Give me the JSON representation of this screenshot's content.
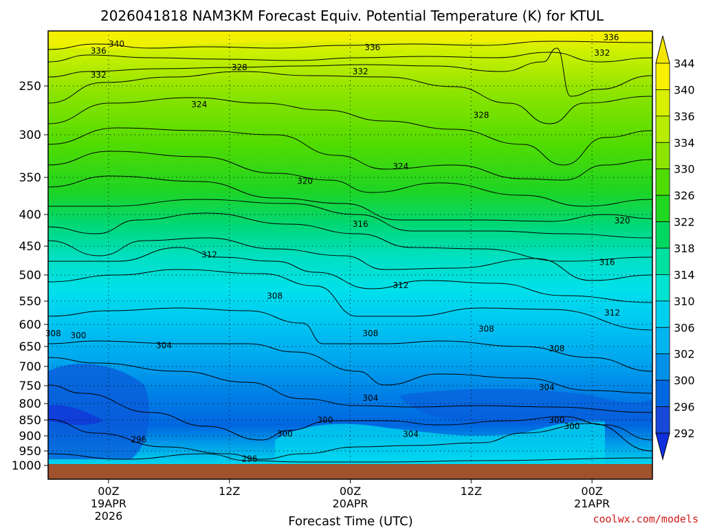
{
  "chart_data": {
    "type": "contour",
    "title": "2026041818 NAM3KM Forecast Equiv. Potential Temperature (K) for KTUL",
    "xlabel": "Forecast Time (UTC)",
    "ylabel": "",
    "credit": "coolwx.com/models",
    "y_axis": {
      "ticks": [
        "250",
        "300",
        "350",
        "400",
        "450",
        "500",
        "550",
        "600",
        "650",
        "700",
        "750",
        "800",
        "850",
        "900",
        "950",
        "1000"
      ],
      "values": [
        250,
        300,
        350,
        400,
        450,
        500,
        550,
        600,
        650,
        700,
        750,
        800,
        850,
        900,
        950,
        1000
      ],
      "range": [
        200,
        1000
      ]
    },
    "x_axis": {
      "ticks": [
        {
          "label": "00Z",
          "date": "19APR",
          "year": "2026",
          "hour": 6
        },
        {
          "label": "12Z",
          "date": "",
          "year": "",
          "hour": 18
        },
        {
          "label": "00Z",
          "date": "20APR",
          "year": "",
          "hour": 30
        },
        {
          "label": "12Z",
          "date": "",
          "year": "",
          "hour": 42
        },
        {
          "label": "00Z",
          "date": "21APR",
          "year": "",
          "hour": 54
        }
      ],
      "range": [
        0,
        60
      ]
    },
    "colorbar": {
      "labels": [
        "344",
        "340",
        "336",
        "334",
        "330",
        "326",
        "322",
        "318",
        "314",
        "310",
        "306",
        "302",
        "300",
        "296",
        "292"
      ],
      "colors": [
        "#f4e600",
        "#f8f000",
        "#d8f000",
        "#b8ec00",
        "#8ce400",
        "#50dc00",
        "#20d820",
        "#00d860",
        "#00e0a0",
        "#00e4d0",
        "#00d0f0",
        "#00b4f0",
        "#0090e8",
        "#0068e0",
        "#1848d8",
        "#1030e0"
      ]
    },
    "contour_labels": [
      {
        "text": "340",
        "hour": 6.8,
        "p": 212
      },
      {
        "text": "336",
        "hour": 5.0,
        "p": 218
      },
      {
        "text": "336",
        "hour": 32.2,
        "p": 215
      },
      {
        "text": "336",
        "hour": 55.9,
        "p": 206
      },
      {
        "text": "332",
        "hour": 55.0,
        "p": 220
      },
      {
        "text": "332",
        "hour": 31.0,
        "p": 237
      },
      {
        "text": "332",
        "hour": 5.0,
        "p": 240
      },
      {
        "text": "328",
        "hour": 19.0,
        "p": 233
      },
      {
        "text": "328",
        "hour": 43.0,
        "p": 280
      },
      {
        "text": "324",
        "hour": 15.0,
        "p": 269
      },
      {
        "text": "324",
        "hour": 35.0,
        "p": 337
      },
      {
        "text": "320",
        "hour": 25.5,
        "p": 355
      },
      {
        "text": "320",
        "hour": 57.0,
        "p": 410
      },
      {
        "text": "316",
        "hour": 31.0,
        "p": 415
      },
      {
        "text": "316",
        "hour": 55.5,
        "p": 478
      },
      {
        "text": "312",
        "hour": 16.0,
        "p": 465
      },
      {
        "text": "312",
        "hour": 35.0,
        "p": 520
      },
      {
        "text": "312",
        "hour": 56.0,
        "p": 575
      },
      {
        "text": "308",
        "hour": 0.5,
        "p": 620
      },
      {
        "text": "308",
        "hour": 22.5,
        "p": 540
      },
      {
        "text": "308",
        "hour": 32.0,
        "p": 620
      },
      {
        "text": "308",
        "hour": 43.5,
        "p": 610
      },
      {
        "text": "308",
        "hour": 50.5,
        "p": 655
      },
      {
        "text": "304",
        "hour": 11.5,
        "p": 648
      },
      {
        "text": "304",
        "hour": 32.0,
        "p": 785
      },
      {
        "text": "304",
        "hour": 49.5,
        "p": 755
      },
      {
        "text": "304",
        "hour": 36.0,
        "p": 895
      },
      {
        "text": "300",
        "hour": 3.0,
        "p": 625
      },
      {
        "text": "300",
        "hour": 27.5,
        "p": 850
      },
      {
        "text": "300",
        "hour": 23.5,
        "p": 893
      },
      {
        "text": "300",
        "hour": 50.5,
        "p": 850
      },
      {
        "text": "300",
        "hour": 52.0,
        "p": 870
      },
      {
        "text": "296",
        "hour": 9.0,
        "p": 912
      },
      {
        "text": "296",
        "hour": 20.0,
        "p": 977
      }
    ]
  }
}
